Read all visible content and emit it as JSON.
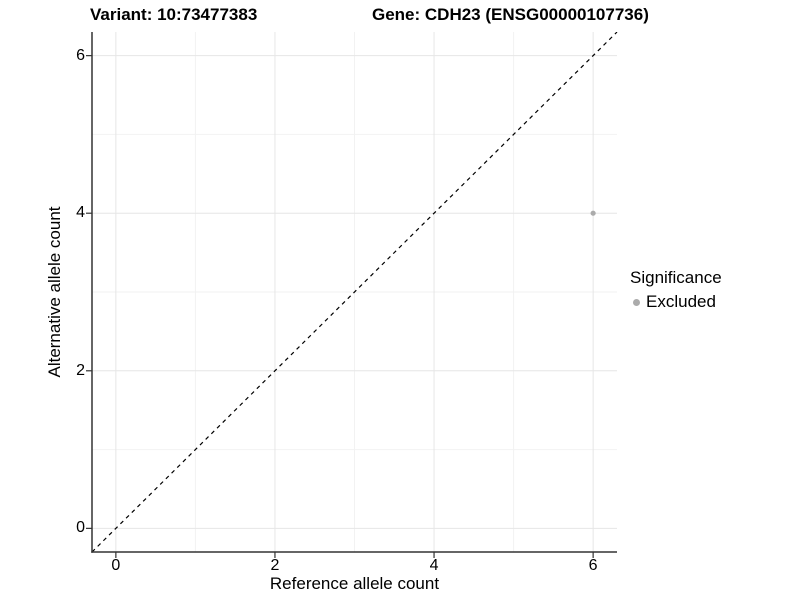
{
  "chart_data": {
    "type": "scatter",
    "titles": {
      "variant": "Variant: 10:73477383",
      "gene": "Gene: CDH23 (ENSG00000107736)"
    },
    "xlabel": "Reference allele count",
    "ylabel": "Alternative allele count",
    "xlim": [
      -0.3,
      6.3
    ],
    "ylim": [
      -0.3,
      6.3
    ],
    "xticks": [
      0,
      2,
      4,
      6
    ],
    "yticks": [
      0,
      2,
      4,
      6
    ],
    "xminor": [
      1,
      3,
      5
    ],
    "yminor": [
      1,
      3,
      5
    ],
    "grid": "major and minor gridlines, light gray on white panel",
    "points": [
      {
        "x": 6,
        "y": 4,
        "series": "Excluded"
      }
    ],
    "identity_line": {
      "from": [
        -0.3,
        -0.3
      ],
      "to": [
        6.3,
        6.3
      ],
      "style": "dashed",
      "color": "#000000"
    },
    "legend": {
      "title": "Significance",
      "position": "right",
      "entries": [
        {
          "label": "Excluded",
          "color": "#ababab"
        }
      ]
    },
    "style": {
      "point_color": "#ababab",
      "point_radius_px": 2.6,
      "grid_major": "#e6e6e6",
      "grid_minor": "#f2f2f2",
      "axis_line": "#333333",
      "tick_color": "#333333",
      "text_color": "#000000",
      "background": "#ffffff"
    }
  }
}
